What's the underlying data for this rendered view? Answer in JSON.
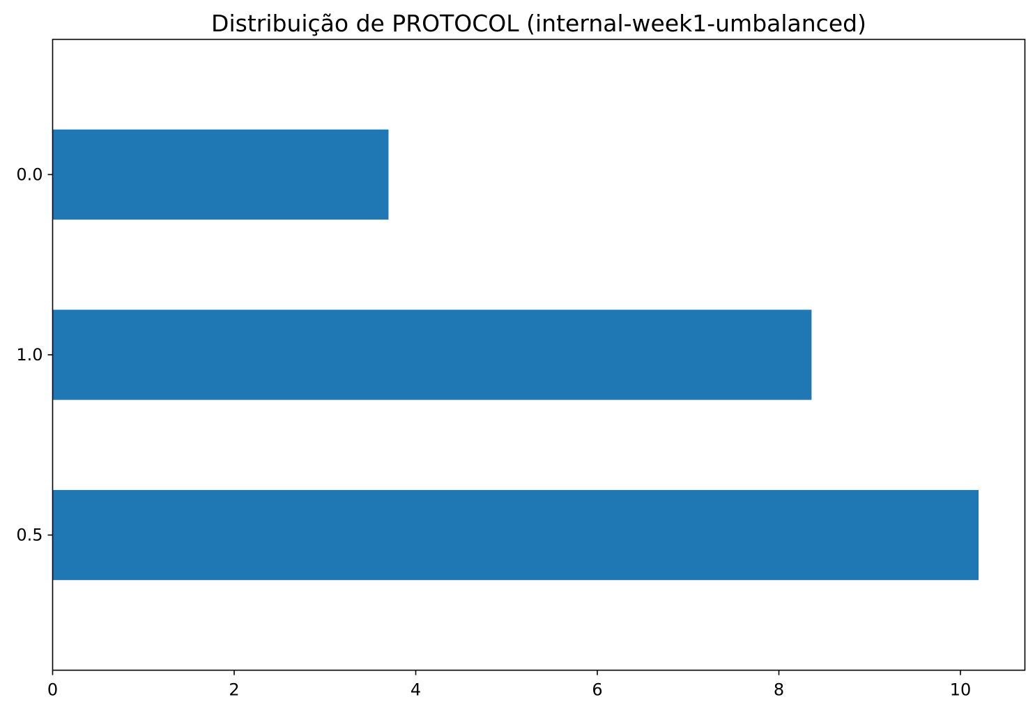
{
  "chart_data": {
    "type": "bar",
    "orientation": "horizontal",
    "title": "Distribuição de PROTOCOL (internal-week1-umbalanced)",
    "xlabel": "",
    "ylabel": "",
    "categories": [
      "0.0",
      "1.0",
      "0.5"
    ],
    "values": [
      3.7,
      8.36,
      10.2
    ],
    "xlim": [
      0,
      10.71
    ],
    "xticks": [
      0,
      2,
      4,
      6,
      8,
      10
    ],
    "xtick_labels": [
      "0",
      "2",
      "4",
      "6",
      "8",
      "10"
    ],
    "grid": false,
    "legend": "none",
    "bar_color": "#1f77b4"
  }
}
